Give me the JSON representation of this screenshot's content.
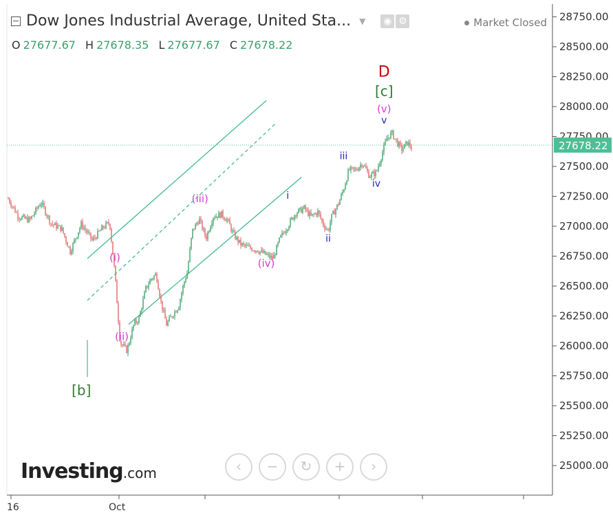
{
  "header": {
    "title": "Dow Jones Industrial Average, United Sta...",
    "status": "Market Closed",
    "icons": [
      "collapse-icon",
      "caret-down-icon",
      "eye-icon",
      "gear-icon"
    ]
  },
  "ohlc": {
    "o_label": "O",
    "o": "27677.67",
    "h_label": "H",
    "h": "27678.35",
    "l_label": "L",
    "l": "27677.67",
    "c_label": "C",
    "c": "27678.22"
  },
  "logo": {
    "main": "Investing",
    "suffix": ".com"
  },
  "nav": [
    "chevron-left-icon",
    "zoom-out-icon",
    "reset-icon",
    "zoom-in-icon",
    "chevron-right-icon"
  ],
  "colors": {
    "up": "#3aa06a",
    "down": "#e06666",
    "channel": "#4cbf97",
    "wave_minor": "#d63cd6",
    "wave_sub": "#2020c0",
    "wave_major": "#cc0000",
    "wave_cycle": "#2e7d32"
  },
  "chart_data": {
    "type": "candlestick",
    "instrument": "Dow Jones Industrial Average",
    "y_ticks": [
      "28750.00",
      "28500.00",
      "28250.00",
      "28000.00",
      "27750.00",
      "27500.00",
      "27250.00",
      "27000.00",
      "26750.00",
      "26500.00",
      "26250.00",
      "26000.00",
      "25750.00",
      "25500.00",
      "25250.00",
      "25000.00"
    ],
    "ylim": [
      24800,
      28850
    ],
    "x_labels": [
      "16",
      "Oct"
    ],
    "last_price": "27678.22",
    "price_path": [
      [
        0,
        27230
      ],
      [
        12,
        27080
      ],
      [
        25,
        27050
      ],
      [
        38,
        27200
      ],
      [
        50,
        27020
      ],
      [
        62,
        26980
      ],
      [
        72,
        26790
      ],
      [
        85,
        27020
      ],
      [
        98,
        26880
      ],
      [
        110,
        26990
      ],
      [
        118,
        27030
      ],
      [
        124,
        26600
      ],
      [
        130,
        26030
      ],
      [
        138,
        25960
      ],
      [
        146,
        26180
      ],
      [
        152,
        26230
      ],
      [
        160,
        26480
      ],
      [
        166,
        26560
      ],
      [
        172,
        26600
      ],
      [
        178,
        26350
      ],
      [
        184,
        26180
      ],
      [
        190,
        26250
      ],
      [
        198,
        26330
      ],
      [
        204,
        26520
      ],
      [
        208,
        26610
      ],
      [
        214,
        26960
      ],
      [
        222,
        27060
      ],
      [
        230,
        26900
      ],
      [
        238,
        27080
      ],
      [
        248,
        27100
      ],
      [
        255,
        27050
      ],
      [
        262,
        26930
      ],
      [
        270,
        26850
      ],
      [
        280,
        26820
      ],
      [
        290,
        26800
      ],
      [
        300,
        26760
      ],
      [
        308,
        26730
      ],
      [
        316,
        26900
      ],
      [
        324,
        26990
      ],
      [
        334,
        27110
      ],
      [
        344,
        27150
      ],
      [
        352,
        27080
      ],
      [
        360,
        27120
      ],
      [
        366,
        27020
      ],
      [
        372,
        26960
      ],
      [
        376,
        27080
      ],
      [
        384,
        27190
      ],
      [
        390,
        27310
      ],
      [
        396,
        27470
      ],
      [
        404,
        27470
      ],
      [
        412,
        27530
      ],
      [
        420,
        27420
      ],
      [
        428,
        27450
      ],
      [
        434,
        27590
      ],
      [
        440,
        27730
      ],
      [
        446,
        27780
      ],
      [
        452,
        27700
      ],
      [
        458,
        27640
      ],
      [
        464,
        27700
      ],
      [
        470,
        27650
      ]
    ],
    "channel": {
      "upper": [
        [
          92,
          26730
        ],
        [
          300,
          28050
        ]
      ],
      "middle": [
        [
          92,
          26380
        ],
        [
          311,
          27860
        ]
      ],
      "lower": [
        [
          140,
          26180
        ],
        [
          341,
          27410
        ]
      ]
    },
    "annotations": [
      {
        "label": "D",
        "t": 437,
        "y": 28250,
        "role": "major"
      },
      {
        "label": "[c]",
        "t": 437,
        "y": 28090,
        "role": "cycle"
      },
      {
        "label": "(v)",
        "t": 437,
        "y": 27950,
        "role": "minor"
      },
      {
        "label": "v",
        "t": 437,
        "y": 27860,
        "role": "sub"
      },
      {
        "label": "iii",
        "t": 390,
        "y": 27560,
        "role": "sub"
      },
      {
        "label": "iv",
        "t": 428,
        "y": 27330,
        "role": "sub"
      },
      {
        "label": "i",
        "t": 325,
        "y": 27230,
        "role": "sub"
      },
      {
        "label": "ii",
        "t": 372,
        "y": 26870,
        "role": "sub"
      },
      {
        "label": "(iii)",
        "t": 223,
        "y": 27200,
        "role": "minor"
      },
      {
        "label": "(iv)",
        "t": 300,
        "y": 26660,
        "role": "minor"
      },
      {
        "label": "(i)",
        "t": 124,
        "y": 26710,
        "role": "minor"
      },
      {
        "label": "(ii)",
        "t": 132,
        "y": 26050,
        "role": "minor"
      },
      {
        "label": "[b]",
        "t": 85,
        "y": 25590,
        "role": "cycle"
      }
    ]
  }
}
